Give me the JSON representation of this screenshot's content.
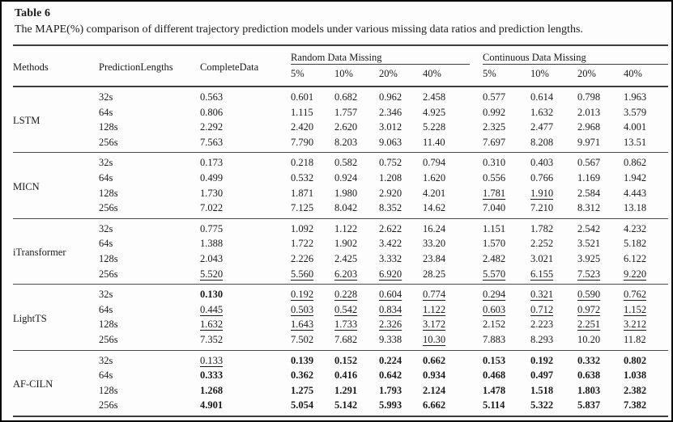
{
  "title": "Table 6",
  "caption": "The MAPE(%) comparison of different trajectory prediction models under various missing data ratios and prediction lengths.",
  "table": {
    "headers": {
      "methods": "Methods",
      "prediction_lengths": "PredictionLengths",
      "complete_data": "CompleteData",
      "random_group": "Random Data Missing",
      "continuous_group": "Continuous Data Missing",
      "ratios": [
        "5%",
        "10%",
        "20%",
        "40%"
      ]
    },
    "groups": [
      {
        "method": "LSTM",
        "rows": [
          {
            "len": "32s",
            "cells": [
              {
                "v": "0.563"
              },
              {
                "v": "0.601"
              },
              {
                "v": "0.682"
              },
              {
                "v": "0.962"
              },
              {
                "v": "2.458"
              },
              {
                "v": "0.577"
              },
              {
                "v": "0.614"
              },
              {
                "v": "0.798"
              },
              {
                "v": "1.963"
              }
            ]
          },
          {
            "len": "64s",
            "cells": [
              {
                "v": "0.806"
              },
              {
                "v": "1.115"
              },
              {
                "v": "1.757"
              },
              {
                "v": "2.346"
              },
              {
                "v": "4.925"
              },
              {
                "v": "0.992"
              },
              {
                "v": "1.632"
              },
              {
                "v": "2.013"
              },
              {
                "v": "3.579"
              }
            ]
          },
          {
            "len": "128s",
            "cells": [
              {
                "v": "2.292"
              },
              {
                "v": "2.420"
              },
              {
                "v": "2.620"
              },
              {
                "v": "3.012"
              },
              {
                "v": "5.228"
              },
              {
                "v": "2.325"
              },
              {
                "v": "2.477"
              },
              {
                "v": "2.968"
              },
              {
                "v": "4.001"
              }
            ]
          },
          {
            "len": "256s",
            "cells": [
              {
                "v": "7.563"
              },
              {
                "v": "7.790"
              },
              {
                "v": "8.203"
              },
              {
                "v": "9.063"
              },
              {
                "v": "11.40"
              },
              {
                "v": "7.697"
              },
              {
                "v": "8.208"
              },
              {
                "v": "9.971"
              },
              {
                "v": "13.51"
              }
            ]
          }
        ]
      },
      {
        "method": "MICN",
        "rows": [
          {
            "len": "32s",
            "cells": [
              {
                "v": "0.173"
              },
              {
                "v": "0.218"
              },
              {
                "v": "0.582"
              },
              {
                "v": "0.752"
              },
              {
                "v": "0.794"
              },
              {
                "v": "0.310"
              },
              {
                "v": "0.403"
              },
              {
                "v": "0.567"
              },
              {
                "v": "0.862"
              }
            ]
          },
          {
            "len": "64s",
            "cells": [
              {
                "v": "0.499"
              },
              {
                "v": "0.532"
              },
              {
                "v": "0.924"
              },
              {
                "v": "1.208"
              },
              {
                "v": "1.620"
              },
              {
                "v": "0.556"
              },
              {
                "v": "0.766"
              },
              {
                "v": "1.169"
              },
              {
                "v": "1.942"
              }
            ]
          },
          {
            "len": "128s",
            "cells": [
              {
                "v": "1.730"
              },
              {
                "v": "1.871"
              },
              {
                "v": "1.980"
              },
              {
                "v": "2.920"
              },
              {
                "v": "4.201"
              },
              {
                "v": "1.781",
                "f": "u"
              },
              {
                "v": "1.910",
                "f": "u"
              },
              {
                "v": "2.584"
              },
              {
                "v": "4.443"
              }
            ]
          },
          {
            "len": "256s",
            "cells": [
              {
                "v": "7.022"
              },
              {
                "v": "7.125"
              },
              {
                "v": "8.042"
              },
              {
                "v": "8.352"
              },
              {
                "v": "14.62"
              },
              {
                "v": "7.040"
              },
              {
                "v": "7.210"
              },
              {
                "v": "8.312"
              },
              {
                "v": "13.18"
              }
            ]
          }
        ]
      },
      {
        "method": "iTransformer",
        "rows": [
          {
            "len": "32s",
            "cells": [
              {
                "v": "0.775"
              },
              {
                "v": "1.092"
              },
              {
                "v": "1.122"
              },
              {
                "v": "2.622"
              },
              {
                "v": "16.24"
              },
              {
                "v": "1.151"
              },
              {
                "v": "1.782"
              },
              {
                "v": "2.542"
              },
              {
                "v": "4.232"
              }
            ]
          },
          {
            "len": "64s",
            "cells": [
              {
                "v": "1.388"
              },
              {
                "v": "1.722"
              },
              {
                "v": "1.902"
              },
              {
                "v": "3.422"
              },
              {
                "v": "33.20"
              },
              {
                "v": "1.570"
              },
              {
                "v": "2.252"
              },
              {
                "v": "3.521"
              },
              {
                "v": "5.182"
              }
            ]
          },
          {
            "len": "128s",
            "cells": [
              {
                "v": "2.043"
              },
              {
                "v": "2.226"
              },
              {
                "v": "2.425"
              },
              {
                "v": "3.332"
              },
              {
                "v": "23.84"
              },
              {
                "v": "2.482"
              },
              {
                "v": "3.021"
              },
              {
                "v": "3.925"
              },
              {
                "v": "6.122"
              }
            ]
          },
          {
            "len": "256s",
            "cells": [
              {
                "v": "5.520",
                "f": "u"
              },
              {
                "v": "5.560",
                "f": "u"
              },
              {
                "v": "6.203",
                "f": "u"
              },
              {
                "v": "6.920",
                "f": "u"
              },
              {
                "v": "28.25"
              },
              {
                "v": "5.570",
                "f": "u"
              },
              {
                "v": "6.155",
                "f": "u"
              },
              {
                "v": "7.523",
                "f": "u"
              },
              {
                "v": "9.220",
                "f": "u"
              }
            ]
          }
        ]
      },
      {
        "method": "LightTS",
        "rows": [
          {
            "len": "32s",
            "cells": [
              {
                "v": "0.130",
                "f": "b"
              },
              {
                "v": "0.192",
                "f": "u"
              },
              {
                "v": "0.228",
                "f": "u"
              },
              {
                "v": "0.604",
                "f": "u"
              },
              {
                "v": "0.774",
                "f": "u"
              },
              {
                "v": "0.294",
                "f": "u"
              },
              {
                "v": "0.321",
                "f": "u"
              },
              {
                "v": "0.590",
                "f": "u"
              },
              {
                "v": "0.762",
                "f": "u"
              }
            ]
          },
          {
            "len": "64s",
            "cells": [
              {
                "v": "0.445",
                "f": "u"
              },
              {
                "v": "0.503",
                "f": "u"
              },
              {
                "v": "0.542",
                "f": "u"
              },
              {
                "v": "0.834",
                "f": "u"
              },
              {
                "v": "1.122",
                "f": "u"
              },
              {
                "v": "0.603",
                "f": "u"
              },
              {
                "v": "0.712",
                "f": "u"
              },
              {
                "v": "0.972",
                "f": "u"
              },
              {
                "v": "1.152",
                "f": "u"
              }
            ]
          },
          {
            "len": "128s",
            "cells": [
              {
                "v": "1.632",
                "f": "u"
              },
              {
                "v": "1.643",
                "f": "u"
              },
              {
                "v": "1.733",
                "f": "u"
              },
              {
                "v": "2.326",
                "f": "u"
              },
              {
                "v": "3.172",
                "f": "u"
              },
              {
                "v": "2.152"
              },
              {
                "v": "2.223"
              },
              {
                "v": "2.251",
                "f": "u"
              },
              {
                "v": "3.212",
                "f": "u"
              }
            ]
          },
          {
            "len": "256s",
            "cells": [
              {
                "v": "7.352"
              },
              {
                "v": "7.502"
              },
              {
                "v": "7.682"
              },
              {
                "v": "9.338"
              },
              {
                "v": "10.30",
                "f": "u"
              },
              {
                "v": "7.883"
              },
              {
                "v": "8.293"
              },
              {
                "v": "10.20"
              },
              {
                "v": "11.82"
              }
            ]
          }
        ]
      },
      {
        "method": "AF-CILN",
        "rows": [
          {
            "len": "32s",
            "cells": [
              {
                "v": "0.133",
                "f": "u"
              },
              {
                "v": "0.139",
                "f": "b"
              },
              {
                "v": "0.152",
                "f": "b"
              },
              {
                "v": "0.224",
                "f": "b"
              },
              {
                "v": "0.662",
                "f": "b"
              },
              {
                "v": "0.153",
                "f": "b"
              },
              {
                "v": "0.192",
                "f": "b"
              },
              {
                "v": "0.332",
                "f": "b"
              },
              {
                "v": "0.802",
                "f": "b"
              }
            ]
          },
          {
            "len": "64s",
            "cells": [
              {
                "v": "0.333",
                "f": "b"
              },
              {
                "v": "0.362",
                "f": "b"
              },
              {
                "v": "0.416",
                "f": "b"
              },
              {
                "v": "0.642",
                "f": "b"
              },
              {
                "v": "0.934",
                "f": "b"
              },
              {
                "v": "0.468",
                "f": "b"
              },
              {
                "v": "0.497",
                "f": "b"
              },
              {
                "v": "0.638",
                "f": "b"
              },
              {
                "v": "1.038",
                "f": "b"
              }
            ]
          },
          {
            "len": "128s",
            "cells": [
              {
                "v": "1.268",
                "f": "b"
              },
              {
                "v": "1.275",
                "f": "b"
              },
              {
                "v": "1.291",
                "f": "b"
              },
              {
                "v": "1.793",
                "f": "b"
              },
              {
                "v": "2.124",
                "f": "b"
              },
              {
                "v": "1.478",
                "f": "b"
              },
              {
                "v": "1.518",
                "f": "b"
              },
              {
                "v": "1.803",
                "f": "b"
              },
              {
                "v": "2.382",
                "f": "b"
              }
            ]
          },
          {
            "len": "256s",
            "cells": [
              {
                "v": "4.901",
                "f": "b"
              },
              {
                "v": "5.054",
                "f": "b"
              },
              {
                "v": "5.142",
                "f": "b"
              },
              {
                "v": "5.993",
                "f": "b"
              },
              {
                "v": "6.662",
                "f": "b"
              },
              {
                "v": "5.114",
                "f": "b"
              },
              {
                "v": "5.322",
                "f": "b"
              },
              {
                "v": "5.837",
                "f": "b"
              },
              {
                "v": "7.382",
                "f": "b"
              }
            ]
          }
        ]
      }
    ]
  }
}
